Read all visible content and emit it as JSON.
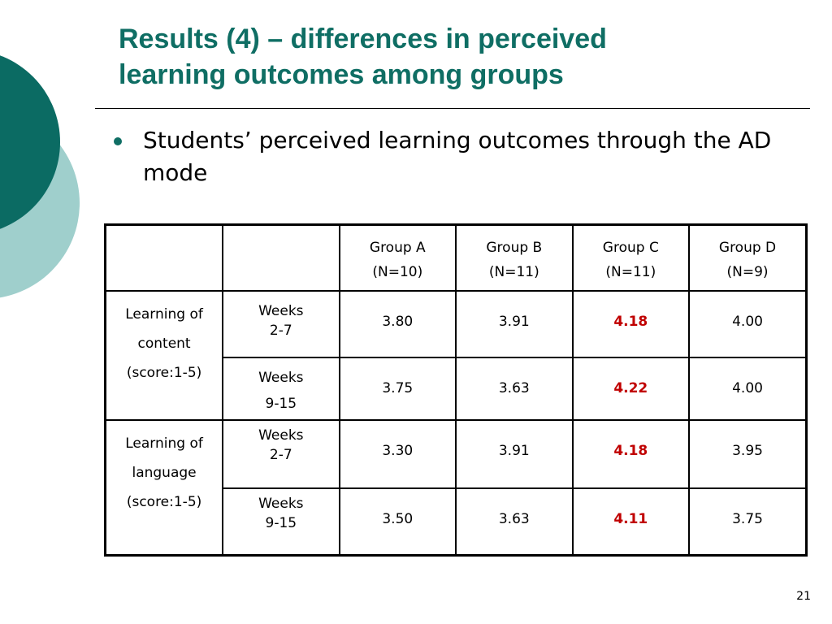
{
  "slide": {
    "title_line1": "Results (4) – differences in perceived",
    "title_line2": "learning outcomes among groups",
    "bullet": "Students’ perceived learning outcomes through the AD mode",
    "page_number": "21"
  },
  "colors": {
    "title": "#0f6e64",
    "decor_dark": "#0b6b63",
    "decor_light": "#9fcfcc",
    "highlight": "#c00000"
  },
  "table": {
    "groups": [
      {
        "name": "Group A",
        "n": "(N=10)"
      },
      {
        "name": "Group B",
        "n": "(N=11)"
      },
      {
        "name": "Group C",
        "n": "(N=11)"
      },
      {
        "name": "Group D",
        "n": "(N=9)"
      }
    ],
    "categories": [
      {
        "label1": "Learning of",
        "label2": "content",
        "label3": "(score:1-5)",
        "rows": [
          {
            "weeks_label": "Weeks",
            "weeks_range": "2-7",
            "values": [
              "3.80",
              "3.91",
              "4.18",
              "4.00"
            ]
          },
          {
            "weeks_label": "Weeks",
            "weeks_range": "9-15",
            "values": [
              "3.75",
              "3.63",
              "4.22",
              "4.00"
            ]
          }
        ]
      },
      {
        "label1": "Learning of",
        "label2": "language",
        "label3": "(score:1-5)",
        "rows": [
          {
            "weeks_label": "Weeks",
            "weeks_range": "2-7",
            "values": [
              "3.30",
              "3.91",
              "4.18",
              "3.95"
            ]
          },
          {
            "weeks_label": "Weeks",
            "weeks_range": "9-15",
            "values": [
              "3.50",
              "3.63",
              "4.11",
              "3.75"
            ]
          }
        ]
      }
    ]
  }
}
